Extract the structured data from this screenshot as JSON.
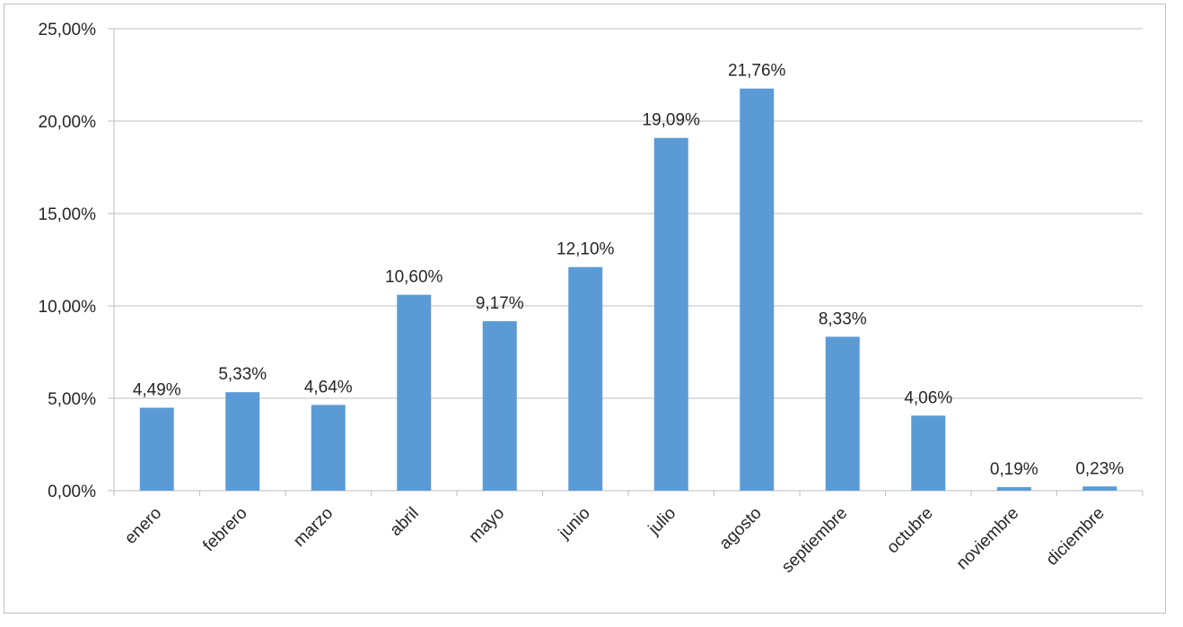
{
  "chart_data": {
    "type": "bar",
    "categories": [
      "enero",
      "febrero",
      "marzo",
      "abril",
      "mayo",
      "junio",
      "julio",
      "agosto",
      "septiembre",
      "octubre",
      "noviembre",
      "diciembre"
    ],
    "values": [
      4.49,
      5.33,
      4.64,
      10.6,
      9.17,
      12.1,
      19.09,
      21.76,
      8.33,
      4.06,
      0.19,
      0.23
    ],
    "data_labels": [
      "4,49%",
      "5,33%",
      "4,64%",
      "10,60%",
      "9,17%",
      "12,10%",
      "19,09%",
      "21,76%",
      "8,33%",
      "4,06%",
      "0,19%",
      "0,23%"
    ],
    "y_ticks": [
      0,
      5,
      10,
      15,
      20,
      25
    ],
    "y_tick_labels": [
      "0,00%",
      "5,00%",
      "10,00%",
      "15,00%",
      "20,00%",
      "25,00%"
    ],
    "ylim": [
      0,
      25
    ],
    "grid": true,
    "legend": "none",
    "bar_color": "#5b9bd5",
    "gridline_color": "#bfbfbf",
    "text_color": "#262626"
  }
}
